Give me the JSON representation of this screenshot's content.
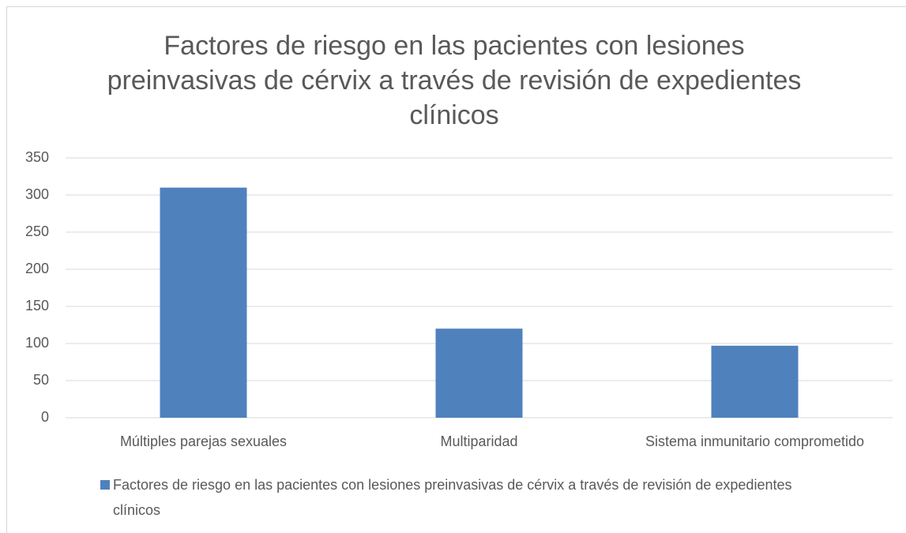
{
  "chart_data": {
    "type": "bar",
    "title": "Factores de riesgo en las pacientes con lesiones preinvasivas de cérvix a través de revisión de expedientes clínicos",
    "categories": [
      "Múltiples parejas sexuales",
      "Multiparidad",
      "Sistema inmunitario comprometido"
    ],
    "series": [
      {
        "name": "Factores de riesgo en las pacientes con lesiones preinvasivas de cérvix a través de revisión de expedientes clínicos",
        "color": "#4f81bd",
        "values": [
          310,
          120,
          97
        ]
      }
    ],
    "ylim": [
      0,
      350
    ],
    "yticks": [
      0,
      50,
      100,
      150,
      200,
      250,
      300,
      350
    ],
    "grid": true,
    "legend": "bottom"
  }
}
